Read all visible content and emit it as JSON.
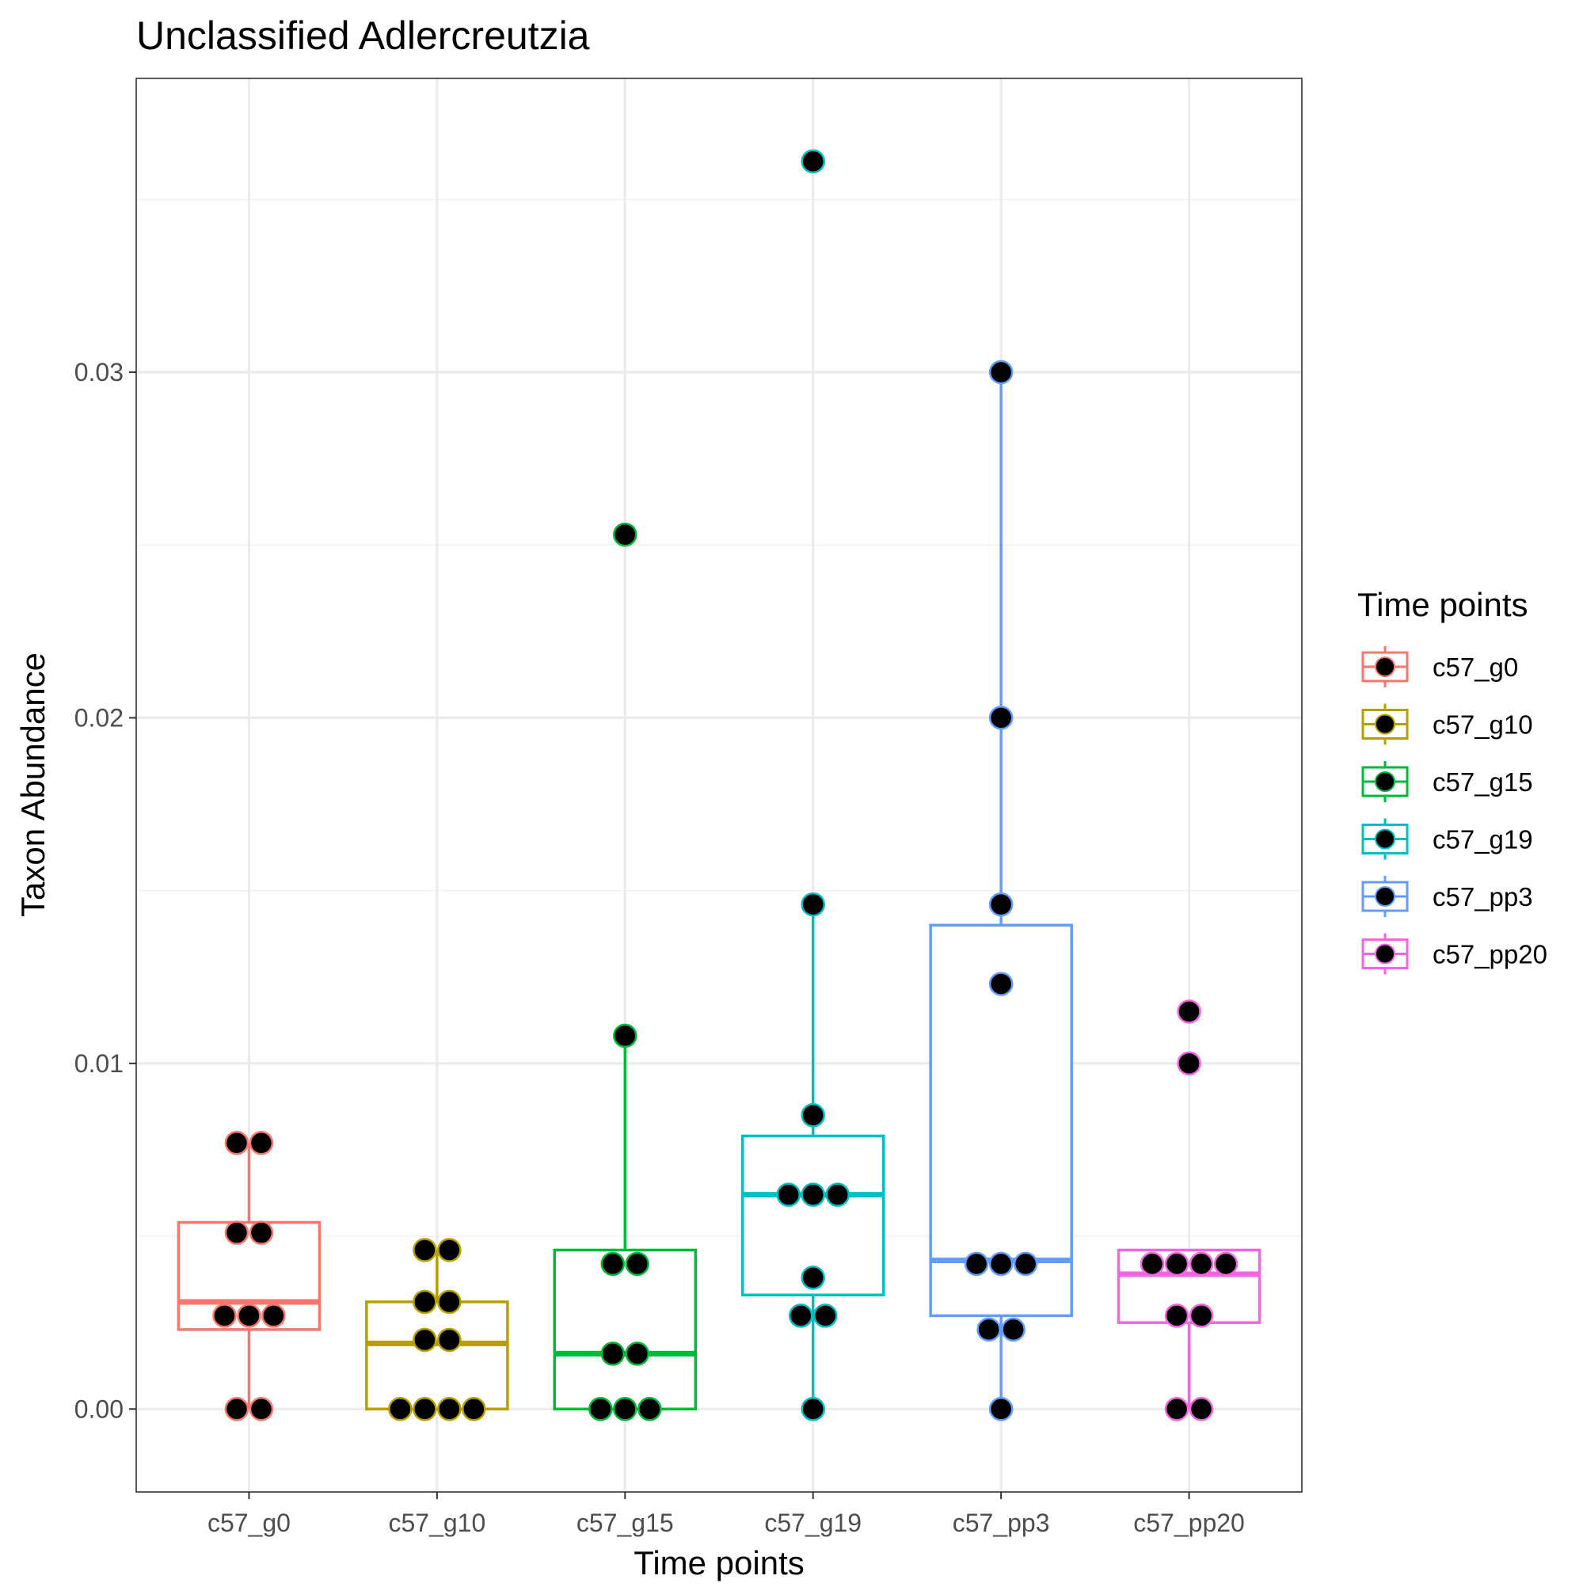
{
  "chart_data": {
    "type": "box",
    "title": "Unclassified  Adlercreutzia",
    "xlabel": "Time points",
    "ylabel": "Taxon Abundance",
    "ylim": [
      -0.0024,
      0.0385
    ],
    "yticks": [
      "0.00",
      "0.01",
      "0.02",
      "0.03"
    ],
    "ytick_values": [
      0.0,
      0.01,
      0.02,
      0.03
    ],
    "grid": true,
    "legend": {
      "title": "Time points",
      "position": "right"
    },
    "categories": [
      "c57_g0",
      "c57_g10",
      "c57_g15",
      "c57_g19",
      "c57_pp3",
      "c57_pp20"
    ],
    "series": [
      {
        "name": "c57_g0",
        "color": "#F8766D",
        "box": {
          "q1": 0.0023,
          "median": 0.0031,
          "q3": 0.0054,
          "whisker_low": 0.0,
          "whisker_high": 0.0077
        },
        "points": [
          0.0077,
          0.0077,
          0.0051,
          0.0051,
          0.0027,
          0.0027,
          0.0027,
          0.0,
          0.0
        ]
      },
      {
        "name": "c57_g10",
        "color": "#B79F00",
        "box": {
          "q1": 0.0,
          "median": 0.0019,
          "q3": 0.0031,
          "whisker_low": 0.0,
          "whisker_high": 0.0046
        },
        "points": [
          0.0046,
          0.0046,
          0.0031,
          0.0031,
          0.002,
          0.002,
          0.0,
          0.0,
          0.0,
          0.0
        ]
      },
      {
        "name": "c57_g15",
        "color": "#00BA38",
        "box": {
          "q1": 0.0,
          "median": 0.0016,
          "q3": 0.0046,
          "whisker_low": 0.0,
          "whisker_high": 0.0108
        },
        "points": [
          0.0253,
          0.0108,
          0.0042,
          0.0042,
          0.0016,
          0.0016,
          0.0,
          0.0,
          0.0
        ]
      },
      {
        "name": "c57_g19",
        "color": "#00BFC4",
        "box": {
          "q1": 0.0033,
          "median": 0.0062,
          "q3": 0.0079,
          "whisker_low": 0.0,
          "whisker_high": 0.0146
        },
        "points": [
          0.0361,
          0.0146,
          0.0085,
          0.0062,
          0.0062,
          0.0062,
          0.0038,
          0.0027,
          0.0027,
          0.0
        ]
      },
      {
        "name": "c57_pp3",
        "color": "#619CFF",
        "box": {
          "q1": 0.0027,
          "median": 0.0043,
          "q3": 0.014,
          "whisker_low": 0.0,
          "whisker_high": 0.03
        },
        "points": [
          0.03,
          0.02,
          0.0146,
          0.0123,
          0.0042,
          0.0042,
          0.0042,
          0.0023,
          0.0023,
          0.0
        ]
      },
      {
        "name": "c57_pp20",
        "color": "#F564E3",
        "box": {
          "q1": 0.0025,
          "median": 0.0039,
          "q3": 0.0046,
          "whisker_low": 0.0,
          "whisker_high": 0.0046
        },
        "points": [
          0.0115,
          0.01,
          0.0042,
          0.0042,
          0.0042,
          0.0042,
          0.0027,
          0.0027,
          0.0,
          0.0
        ]
      }
    ]
  }
}
